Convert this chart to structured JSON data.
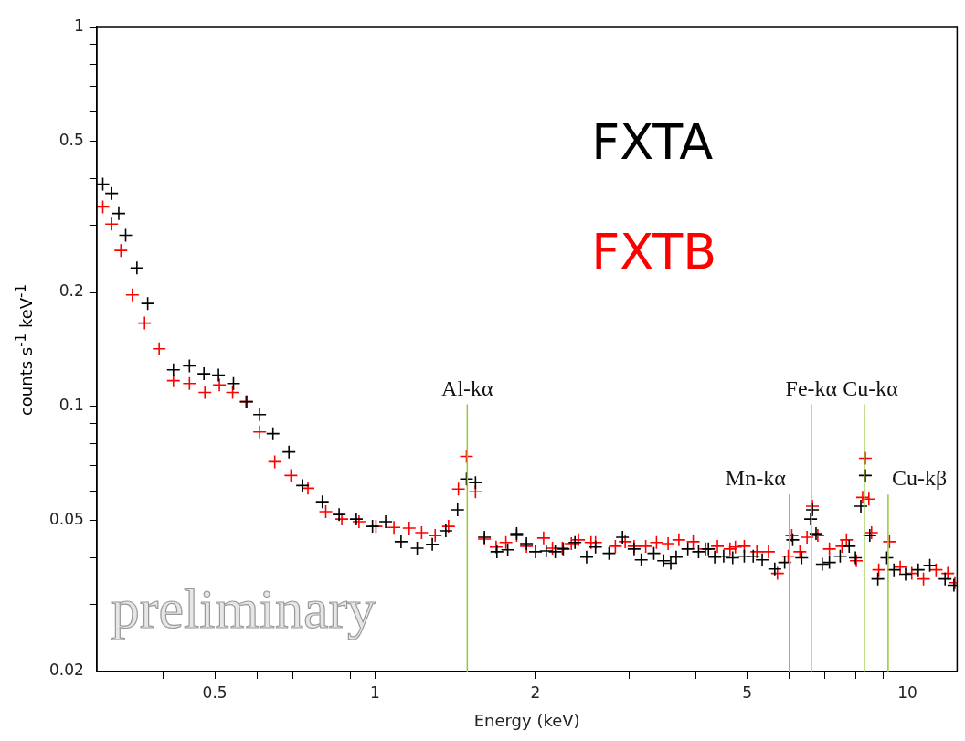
{
  "chart_data": {
    "type": "scatter",
    "xlabel": "Energy (keV)",
    "ylabel": "counts s$^{-1}$ keV$^{-1}$",
    "log": "xy",
    "xlim": [
      0.3,
      12.4
    ],
    "ylim": [
      0.02,
      1
    ],
    "xticks": [
      {
        "value": 0.4,
        "label": null
      },
      0.5,
      {
        "value": 0.6,
        "label": null
      },
      {
        "value": 0.7,
        "label": null
      },
      {
        "value": 0.8,
        "label": null
      },
      {
        "value": 0.9,
        "label": null
      },
      1,
      2,
      {
        "value": 3,
        "label": null
      },
      {
        "value": 4,
        "label": null
      },
      5,
      {
        "value": 6,
        "label": null
      },
      {
        "value": 7,
        "label": null
      },
      {
        "value": 8,
        "label": null
      },
      {
        "value": 9,
        "label": null
      },
      10
    ],
    "yticks": [
      0.02,
      {
        "value": 0.03,
        "label": null
      },
      {
        "value": 0.04,
        "label": null
      },
      0.05,
      {
        "value": 0.06,
        "label": null
      },
      {
        "value": 0.07,
        "label": null
      },
      {
        "value": 0.08,
        "label": null
      },
      {
        "value": 0.09,
        "label": null
      },
      0.1,
      0.2,
      {
        "value": 0.3,
        "label": null
      },
      {
        "value": 0.4,
        "label": null
      },
      0.5,
      {
        "value": 0.6,
        "label": null
      },
      {
        "value": 0.7,
        "label": null
      },
      {
        "value": 0.8,
        "label": null
      },
      {
        "value": 0.9,
        "label": null
      },
      1
    ],
    "legend": "top right",
    "marker": "cross",
    "series": [
      {
        "name": "FXTA",
        "color": "#000000",
        "x": [
          0.308,
          0.32,
          0.33,
          0.34,
          0.357,
          0.374,
          0.418,
          0.448,
          0.477,
          0.508,
          0.542,
          0.574,
          0.607,
          0.643,
          0.689,
          0.731,
          0.796,
          0.856,
          0.922,
          0.989,
          1.047,
          1.119,
          1.2,
          1.281,
          1.358,
          1.429,
          1.485,
          1.544,
          1.605,
          1.694,
          1.775,
          1.845,
          1.925,
          2.002,
          2.097,
          2.18,
          2.257,
          2.374,
          2.497,
          2.595,
          2.751,
          2.916,
          3.066,
          3.162,
          3.339,
          3.484,
          3.593,
          3.678,
          3.868,
          4.052,
          4.229,
          4.345,
          4.517,
          4.696,
          4.938,
          5.133,
          5.336,
          5.634,
          5.88,
          6.089,
          6.33,
          6.58,
          6.631,
          6.735,
          6.92,
          7.137,
          7.477,
          7.773,
          7.987,
          8.175,
          8.335,
          8.498,
          8.8,
          9.148,
          9.435,
          9.922,
          10.48,
          11.02,
          11.77,
          12.23
        ],
        "values": [
          0.386,
          0.365,
          0.323,
          0.283,
          0.232,
          0.187,
          0.125,
          0.128,
          0.122,
          0.121,
          0.115,
          0.103,
          0.0952,
          0.0848,
          0.0759,
          0.0619,
          0.0561,
          0.0519,
          0.0505,
          0.0483,
          0.0497,
          0.044,
          0.0423,
          0.0433,
          0.047,
          0.0534,
          0.0644,
          0.063,
          0.0452,
          0.0414,
          0.0419,
          0.0462,
          0.0435,
          0.0414,
          0.0416,
          0.0414,
          0.0421,
          0.0438,
          0.0401,
          0.0426,
          0.041,
          0.0452,
          0.0421,
          0.0394,
          0.041,
          0.0392,
          0.0386,
          0.0401,
          0.0421,
          0.0414,
          0.0421,
          0.0401,
          0.0403,
          0.0399,
          0.0403,
          0.0403,
          0.0394,
          0.0373,
          0.0388,
          0.0445,
          0.0399,
          0.0505,
          0.0534,
          0.0462,
          0.0384,
          0.0388,
          0.0403,
          0.0428,
          0.0399,
          0.0546,
          0.0658,
          0.0457,
          0.0351,
          0.0399,
          0.0371,
          0.0361,
          0.0371,
          0.0381,
          0.0351,
          0.0338
        ]
      },
      {
        "name": "FXTB",
        "color": "#ff0000",
        "x": [
          0.308,
          0.32,
          0.333,
          0.35,
          0.369,
          0.393,
          0.418,
          0.448,
          0.479,
          0.51,
          0.54,
          0.572,
          0.607,
          0.648,
          0.695,
          0.748,
          0.808,
          0.866,
          0.933,
          1.004,
          1.085,
          1.159,
          1.223,
          1.297,
          1.374,
          1.434,
          1.485,
          1.544,
          1.605,
          1.688,
          1.761,
          1.845,
          1.925,
          2.073,
          2.154,
          2.248,
          2.337,
          2.411,
          2.545,
          2.595,
          2.827,
          2.95,
          3.066,
          3.224,
          3.378,
          3.552,
          3.721,
          3.959,
          4.18,
          4.396,
          4.642,
          4.751,
          4.938,
          5.214,
          5.483,
          5.7,
          5.972,
          6.065,
          6.281,
          6.478,
          6.631,
          6.786,
          7.137,
          7.536,
          7.683,
          8.017,
          8.238,
          8.335,
          8.465,
          8.564,
          8.834,
          9.254,
          9.694,
          10.19,
          10.72,
          11.32,
          11.91,
          12.28
        ],
        "values": [
          0.336,
          0.303,
          0.258,
          0.197,
          0.166,
          0.142,
          0.117,
          0.115,
          0.109,
          0.114,
          0.109,
          0.103,
          0.0857,
          0.0715,
          0.0658,
          0.0609,
          0.0528,
          0.0505,
          0.0497,
          0.0483,
          0.048,
          0.0478,
          0.0465,
          0.0457,
          0.0483,
          0.0606,
          0.0739,
          0.0596,
          0.0447,
          0.0426,
          0.0438,
          0.0457,
          0.0428,
          0.045,
          0.0423,
          0.0423,
          0.0435,
          0.0445,
          0.0438,
          0.0438,
          0.0428,
          0.044,
          0.0428,
          0.0428,
          0.0438,
          0.0435,
          0.0445,
          0.044,
          0.0421,
          0.0428,
          0.0421,
          0.0426,
          0.0428,
          0.0414,
          0.0414,
          0.0363,
          0.0403,
          0.0457,
          0.0414,
          0.0452,
          0.0546,
          0.0457,
          0.0421,
          0.0428,
          0.0445,
          0.0392,
          0.0576,
          0.0731,
          0.057,
          0.0465,
          0.0371,
          0.044,
          0.0377,
          0.0363,
          0.0351,
          0.0371,
          0.0363,
          0.0343
        ]
      }
    ],
    "ref_lines": [
      {
        "axis": "x",
        "value": 1.49,
        "label": "Al-kα",
        "color": "#9bc53d"
      },
      {
        "axis": "x",
        "value": 6.0,
        "label": "Mn-kα",
        "color": "#9bc53d"
      },
      {
        "axis": "x",
        "value": 6.6,
        "label": "Fe-kα",
        "color": "#9bc53d"
      },
      {
        "axis": "x",
        "value": 8.3,
        "label": "Cu-kα",
        "color": "#9bc53d"
      },
      {
        "axis": "x",
        "value": 9.2,
        "label": "Cu-kβ",
        "color": "#9bc53d"
      }
    ],
    "annotations": [
      "preliminary"
    ]
  }
}
